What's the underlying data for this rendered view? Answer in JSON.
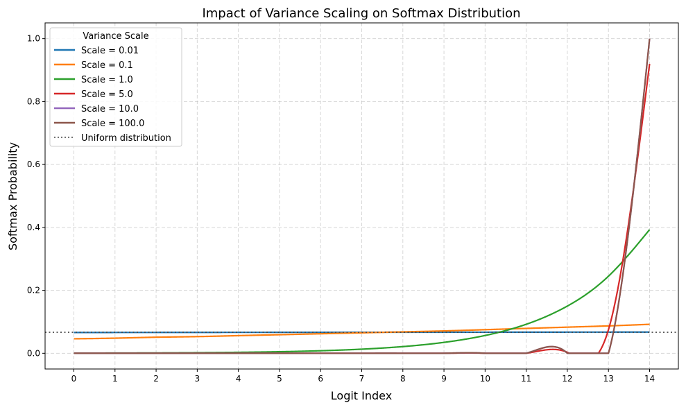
{
  "chart_data": {
    "type": "line",
    "title": "Impact of Variance Scaling on Softmax Distribution",
    "xlabel": "Logit Index",
    "ylabel": "Softmax Probability",
    "xlim": [
      -0.7,
      14.7
    ],
    "ylim": [
      -0.05,
      1.05
    ],
    "grid": true,
    "x": [
      0,
      1,
      2,
      3,
      4,
      5,
      6,
      7,
      8,
      9,
      10,
      11,
      12,
      13,
      14
    ],
    "xticks": [
      "0",
      "1",
      "2",
      "3",
      "4",
      "5",
      "6",
      "7",
      "8",
      "9",
      "10",
      "11",
      "12",
      "13",
      "14"
    ],
    "yticks": [
      {
        "value": 0.0,
        "label": "0.0"
      },
      {
        "value": 0.2,
        "label": "0.2"
      },
      {
        "value": 0.4,
        "label": "0.4"
      },
      {
        "value": 0.6,
        "label": "0.6"
      },
      {
        "value": 0.8,
        "label": "0.8"
      },
      {
        "value": 1.0,
        "label": "1.0"
      }
    ],
    "legend": {
      "title": "Variance Scale",
      "placement": "upper-left"
    },
    "series": [
      {
        "name": "Scale = 0.01",
        "color": "#1f77b4",
        "values": [
          0.066,
          0.0661,
          0.0662,
          0.0663,
          0.0664,
          0.0665,
          0.0666,
          0.0667,
          0.0668,
          0.0669,
          0.067,
          0.0671,
          0.0672,
          0.0673,
          0.0674
        ]
      },
      {
        "name": "Scale = 0.1",
        "color": "#ff7f0e",
        "values": [
          0.046,
          0.048,
          0.051,
          0.053,
          0.056,
          0.059,
          0.062,
          0.065,
          0.068,
          0.071,
          0.075,
          0.079,
          0.083,
          0.087,
          0.092
        ]
      },
      {
        "name": "Scale = 1.0",
        "color": "#2ca02c",
        "values": [
          0.0004,
          0.0007,
          0.0011,
          0.0018,
          0.003,
          0.0049,
          0.008,
          0.013,
          0.0212,
          0.0346,
          0.0565,
          0.0921,
          0.15,
          0.245,
          0.393
        ]
      },
      {
        "name": "Scale = 5.0",
        "color": "#d62728",
        "values": [
          0,
          0,
          0,
          0,
          0,
          0,
          0,
          0,
          0,
          0,
          0,
          0,
          0.003,
          0.075,
          0.92
        ]
      },
      {
        "name": "Scale = 10.0",
        "color": "#9467bd",
        "values": [
          0,
          0,
          0,
          0,
          0,
          0,
          0,
          0,
          0,
          0,
          0,
          0,
          0,
          0,
          1.0
        ]
      },
      {
        "name": "Scale = 100.0",
        "color": "#8c564b",
        "values": [
          0,
          0,
          0,
          0,
          0,
          0,
          0,
          0,
          0,
          0,
          0,
          0,
          0,
          0,
          1.0
        ]
      }
    ],
    "reference_line": {
      "name": "Uniform distribution",
      "value": 0.0667,
      "color": "#444444",
      "style": "dotted"
    }
  }
}
